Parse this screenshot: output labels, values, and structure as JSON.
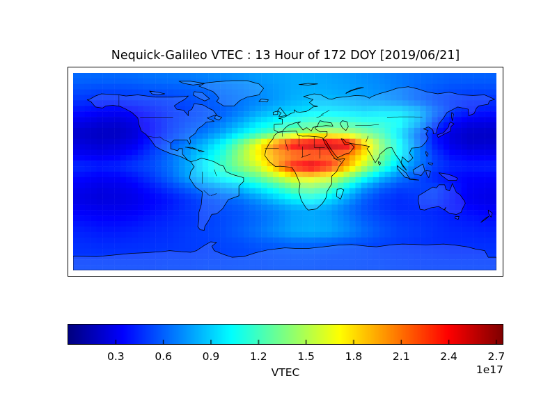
{
  "title": "Nequick-Galileo VTEC : 13 Hour of 172 DOY [2019/06/21]",
  "colorbar": {
    "label": "VTEC",
    "offset_text": "1e17",
    "ticks": [
      0.3,
      0.6,
      0.9,
      1.2,
      1.5,
      1.8,
      2.1,
      2.4,
      2.7
    ],
    "vmin": 0.0,
    "vmax": 2.74,
    "colormap": "jet"
  },
  "chart_data": {
    "type": "heatmap",
    "title": "Nequick-Galileo VTEC : 13 Hour of 172 DOY [2019/06/21]",
    "xlabel": "",
    "ylabel": "",
    "legend": "VTEC colorbar, units 1e17 el/m^2, jet colormap, range 0 to 2.74",
    "projection": "equirectangular world map, lon -180..180, lat 90..-90, coastlines and country borders in black",
    "cell_size_deg": 5,
    "colormap": "jet",
    "vmin": 0.0,
    "vmax": 2.74,
    "units": "1e17 el/m^2",
    "lon_centers": [
      -172.5,
      -157.5,
      -142.5,
      -127.5,
      -112.5,
      -97.5,
      -82.5,
      -67.5,
      -52.5,
      -37.5,
      -22.5,
      -7.5,
      7.5,
      22.5,
      37.5,
      52.5,
      67.5,
      82.5,
      97.5,
      112.5,
      127.5,
      142.5,
      157.5,
      172.5
    ],
    "lat_centers": [
      85,
      75,
      65,
      55,
      45,
      35,
      25,
      15,
      5,
      -5,
      -15,
      -25,
      -35,
      -45,
      -55,
      -65,
      -75,
      -85
    ],
    "values": [
      [
        0.62,
        0.62,
        0.62,
        0.63,
        0.65,
        0.66,
        0.67,
        0.69,
        0.71,
        0.73,
        0.76,
        0.78,
        0.8,
        0.8,
        0.78,
        0.76,
        0.73,
        0.7,
        0.67,
        0.64,
        0.62,
        0.6,
        0.6,
        0.6
      ],
      [
        0.55,
        0.54,
        0.54,
        0.55,
        0.57,
        0.58,
        0.6,
        0.62,
        0.65,
        0.68,
        0.72,
        0.76,
        0.8,
        0.81,
        0.8,
        0.78,
        0.75,
        0.72,
        0.68,
        0.62,
        0.58,
        0.55,
        0.54,
        0.54
      ],
      [
        0.48,
        0.46,
        0.46,
        0.48,
        0.5,
        0.52,
        0.55,
        0.58,
        0.62,
        0.66,
        0.7,
        0.76,
        0.82,
        0.85,
        0.85,
        0.82,
        0.78,
        0.75,
        0.7,
        0.62,
        0.55,
        0.5,
        0.47,
        0.47
      ],
      [
        0.38,
        0.34,
        0.33,
        0.36,
        0.42,
        0.48,
        0.52,
        0.56,
        0.6,
        0.68,
        0.78,
        0.86,
        0.92,
        0.97,
        0.98,
        0.95,
        0.92,
        0.95,
        0.95,
        0.85,
        0.65,
        0.5,
        0.42,
        0.4
      ],
      [
        0.28,
        0.24,
        0.23,
        0.28,
        0.38,
        0.48,
        0.55,
        0.6,
        0.68,
        0.8,
        0.95,
        1.05,
        1.12,
        1.18,
        1.2,
        1.18,
        1.12,
        1.1,
        1.05,
        0.85,
        0.55,
        0.35,
        0.28,
        0.27
      ],
      [
        0.2,
        0.18,
        0.18,
        0.24,
        0.38,
        0.5,
        0.6,
        0.68,
        0.8,
        0.98,
        1.15,
        1.28,
        1.4,
        1.5,
        1.55,
        1.5,
        1.35,
        1.2,
        0.95,
        0.65,
        0.4,
        0.25,
        0.2,
        0.19
      ],
      [
        0.25,
        0.22,
        0.24,
        0.3,
        0.45,
        0.58,
        0.7,
        0.85,
        1.05,
        1.35,
        1.7,
        2.1,
        2.5,
        2.62,
        2.65,
        2.55,
        1.9,
        1.4,
        1.05,
        0.7,
        0.42,
        0.27,
        0.21,
        0.22
      ],
      [
        0.32,
        0.3,
        0.32,
        0.4,
        0.52,
        0.64,
        0.78,
        0.95,
        1.15,
        1.45,
        1.75,
        1.95,
        2.05,
        2.1,
        2.12,
        2.05,
        1.75,
        1.35,
        1.02,
        0.72,
        0.5,
        0.36,
        0.32,
        0.32
      ],
      [
        0.45,
        0.42,
        0.44,
        0.5,
        0.55,
        0.65,
        0.8,
        1.0,
        1.2,
        1.4,
        1.6,
        1.95,
        2.4,
        2.55,
        2.35,
        1.95,
        1.55,
        1.2,
        0.9,
        0.68,
        0.52,
        0.44,
        0.42,
        0.43
      ],
      [
        0.36,
        0.33,
        0.34,
        0.4,
        0.5,
        0.62,
        0.78,
        0.92,
        1.05,
        1.15,
        1.3,
        1.5,
        1.7,
        1.75,
        1.65,
        1.4,
        1.1,
        0.85,
        0.68,
        0.55,
        0.44,
        0.37,
        0.34,
        0.34
      ],
      [
        0.3,
        0.27,
        0.28,
        0.32,
        0.4,
        0.5,
        0.6,
        0.7,
        0.78,
        0.85,
        0.98,
        1.12,
        1.3,
        1.35,
        1.25,
        1.0,
        0.75,
        0.6,
        0.52,
        0.52,
        0.52,
        0.42,
        0.32,
        0.3
      ],
      [
        0.27,
        0.25,
        0.26,
        0.29,
        0.34,
        0.4,
        0.48,
        0.55,
        0.6,
        0.65,
        0.75,
        0.88,
        1.0,
        1.05,
        0.95,
        0.78,
        0.6,
        0.5,
        0.46,
        0.48,
        0.5,
        0.4,
        0.3,
        0.28
      ],
      [
        0.32,
        0.3,
        0.3,
        0.32,
        0.37,
        0.42,
        0.48,
        0.52,
        0.55,
        0.58,
        0.64,
        0.7,
        0.78,
        0.8,
        0.76,
        0.66,
        0.56,
        0.5,
        0.46,
        0.46,
        0.44,
        0.4,
        0.36,
        0.33
      ],
      [
        0.38,
        0.36,
        0.36,
        0.38,
        0.42,
        0.45,
        0.48,
        0.51,
        0.54,
        0.58,
        0.63,
        0.7,
        0.78,
        0.8,
        0.78,
        0.7,
        0.6,
        0.54,
        0.5,
        0.48,
        0.46,
        0.43,
        0.41,
        0.39
      ],
      [
        0.43,
        0.41,
        0.41,
        0.43,
        0.45,
        0.47,
        0.5,
        0.52,
        0.55,
        0.6,
        0.66,
        0.73,
        0.8,
        0.82,
        0.8,
        0.73,
        0.64,
        0.57,
        0.52,
        0.5,
        0.47,
        0.45,
        0.44,
        0.43
      ],
      [
        0.46,
        0.45,
        0.45,
        0.46,
        0.47,
        0.48,
        0.5,
        0.51,
        0.53,
        0.55,
        0.58,
        0.6,
        0.63,
        0.63,
        0.61,
        0.58,
        0.55,
        0.52,
        0.5,
        0.48,
        0.47,
        0.46,
        0.46,
        0.46
      ],
      [
        0.48,
        0.48,
        0.48,
        0.48,
        0.49,
        0.5,
        0.5,
        0.51,
        0.52,
        0.53,
        0.55,
        0.56,
        0.57,
        0.57,
        0.56,
        0.55,
        0.54,
        0.52,
        0.51,
        0.5,
        0.49,
        0.48,
        0.48,
        0.48
      ],
      [
        0.52,
        0.52,
        0.52,
        0.52,
        0.52,
        0.53,
        0.53,
        0.54,
        0.54,
        0.55,
        0.55,
        0.56,
        0.56,
        0.56,
        0.55,
        0.55,
        0.54,
        0.54,
        0.53,
        0.52,
        0.52,
        0.52,
        0.52,
        0.52
      ]
    ]
  }
}
